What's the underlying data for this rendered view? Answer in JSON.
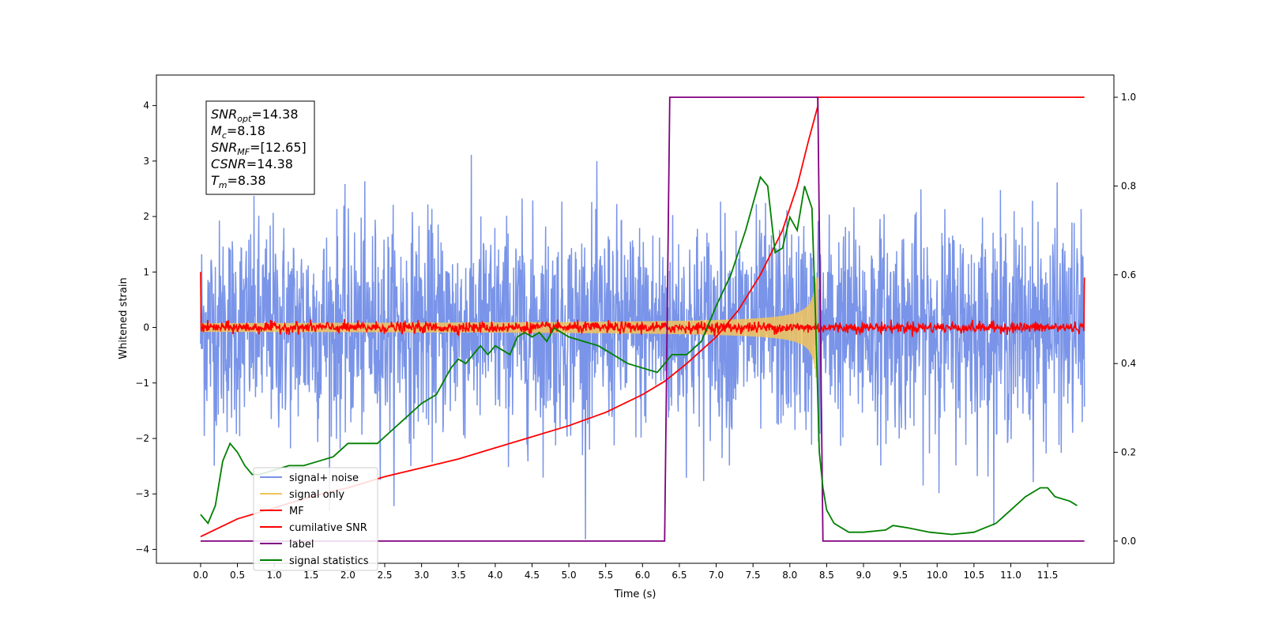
{
  "chart_data": {
    "type": "line",
    "title": "",
    "xlabel": "Time (s)",
    "ylabel": "Whitened strain",
    "xlim": [
      -0.6,
      12.4
    ],
    "ylim": [
      -4.25,
      4.55
    ],
    "y2lim": [
      -0.05,
      1.05
    ],
    "xticks": [
      "0.0",
      "0.5",
      "1.0",
      "1.5",
      "2.0",
      "2.5",
      "3.0",
      "3.5",
      "4.0",
      "4.5",
      "5.0",
      "5.5",
      "6.0",
      "6.5",
      "7.0",
      "7.5",
      "8.0",
      "8.5",
      "9.0",
      "9.5",
      "10.0",
      "10.5",
      "11.0",
      "11.5"
    ],
    "yticks": [
      "−4",
      "−3",
      "−2",
      "−1",
      "0",
      "1",
      "2",
      "3",
      "4"
    ],
    "y2ticks": [
      "0.0",
      "0.2",
      "0.4",
      "0.6",
      "0.8",
      "1.0"
    ],
    "grid": false,
    "legend_position": "lower-left",
    "annotation": [
      {
        "sym": "SNR",
        "sub": "opt",
        "rest": "=14.38"
      },
      {
        "sym": "M",
        "sub": "c",
        "rest": "=8.18"
      },
      {
        "sym": "SNR",
        "sub": "MF",
        "rest": "=[12.65]"
      },
      {
        "sym": "CSNR",
        "sub": "",
        "rest": "=14.38"
      },
      {
        "sym": "T",
        "sub": "m",
        "rest": "=8.38"
      }
    ],
    "series": [
      {
        "name": "signal+ noise",
        "color": "#7994e8",
        "axis": "left",
        "kind": "noise",
        "x_range": [
          0,
          12
        ],
        "std": 0.95
      },
      {
        "name": "signal only",
        "color": "#f2c45a",
        "axis": "left",
        "kind": "chirp",
        "x_range": [
          0,
          8.38
        ],
        "env_start": 0.05,
        "env_end": 0.9
      },
      {
        "name": "MF",
        "color": "#ff0000",
        "axis": "left",
        "kind": "mf",
        "x_range": [
          0,
          12
        ],
        "std": 0.05,
        "edge_values": [
          1.0,
          0.9
        ]
      },
      {
        "name": "cumilative SNR",
        "color": "#ff0000",
        "axis": "right",
        "kind": "line",
        "x": [
          0,
          0.5,
          1,
          1.5,
          2,
          2.5,
          3,
          3.5,
          4,
          4.5,
          5,
          5.5,
          6,
          6.3,
          6.6,
          7,
          7.3,
          7.6,
          7.9,
          8.1,
          8.25,
          8.38,
          8.38,
          12
        ],
        "y": [
          0.01,
          0.05,
          0.075,
          0.1,
          0.12,
          0.145,
          0.165,
          0.185,
          0.21,
          0.235,
          0.26,
          0.29,
          0.33,
          0.36,
          0.4,
          0.46,
          0.52,
          0.6,
          0.7,
          0.8,
          0.9,
          0.98,
          1.0,
          1.0
        ]
      },
      {
        "name": "label",
        "color": "#800080",
        "axis": "right",
        "kind": "line",
        "x": [
          0,
          6.3,
          6.37,
          8.38,
          8.45,
          12
        ],
        "y": [
          0,
          0,
          1,
          1,
          0,
          0
        ]
      },
      {
        "name": "signal statistics",
        "color": "#008000",
        "axis": "right",
        "kind": "line",
        "x": [
          0,
          0.1,
          0.2,
          0.3,
          0.4,
          0.5,
          0.6,
          0.7,
          0.8,
          1.0,
          1.2,
          1.4,
          1.6,
          1.8,
          2.0,
          2.2,
          2.4,
          2.6,
          2.8,
          3.0,
          3.2,
          3.4,
          3.5,
          3.6,
          3.7,
          3.8,
          3.9,
          4.0,
          4.1,
          4.2,
          4.3,
          4.4,
          4.5,
          4.6,
          4.7,
          4.8,
          5.0,
          5.2,
          5.4,
          5.6,
          5.8,
          6.0,
          6.2,
          6.3,
          6.4,
          6.6,
          6.8,
          7.0,
          7.2,
          7.4,
          7.6,
          7.7,
          7.8,
          7.9,
          8.0,
          8.1,
          8.2,
          8.3,
          8.35,
          8.4,
          8.45,
          8.5,
          8.6,
          8.8,
          9.0,
          9.3,
          9.4,
          9.6,
          9.9,
          10.2,
          10.5,
          10.8,
          11.0,
          11.2,
          11.4,
          11.5,
          11.6,
          11.8,
          11.9
        ],
        "y": [
          0.06,
          0.04,
          0.08,
          0.18,
          0.22,
          0.2,
          0.17,
          0.15,
          0.15,
          0.16,
          0.17,
          0.17,
          0.18,
          0.19,
          0.22,
          0.22,
          0.22,
          0.25,
          0.28,
          0.31,
          0.33,
          0.39,
          0.41,
          0.4,
          0.42,
          0.44,
          0.42,
          0.44,
          0.43,
          0.42,
          0.46,
          0.47,
          0.46,
          0.47,
          0.45,
          0.48,
          0.46,
          0.45,
          0.44,
          0.42,
          0.4,
          0.39,
          0.38,
          0.4,
          0.42,
          0.42,
          0.45,
          0.53,
          0.6,
          0.7,
          0.82,
          0.8,
          0.65,
          0.66,
          0.73,
          0.7,
          0.8,
          0.75,
          0.5,
          0.2,
          0.12,
          0.07,
          0.04,
          0.02,
          0.02,
          0.025,
          0.035,
          0.03,
          0.02,
          0.015,
          0.02,
          0.04,
          0.07,
          0.1,
          0.12,
          0.12,
          0.1,
          0.09,
          0.08
        ]
      }
    ]
  }
}
